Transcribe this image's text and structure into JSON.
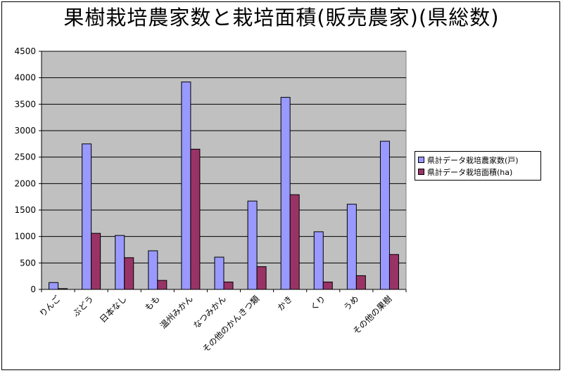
{
  "chart_data": {
    "type": "bar",
    "title": "果樹栽培農家数と栽培面積(販売農家)(県総数)",
    "categories": [
      "りんご",
      "ぶどう",
      "日本なし",
      "もも",
      "温州みかん",
      "なつみかん",
      "その他のかんきつ類",
      "かき",
      "くり",
      "うめ",
      "その他の果樹"
    ],
    "series": [
      {
        "name": "県計データ栽培農家数(戸)",
        "color": "#9999ff",
        "values": [
          130,
          2750,
          1020,
          730,
          3920,
          610,
          1670,
          3630,
          1090,
          1610,
          2800
        ]
      },
      {
        "name": "県計データ栽培面積(ha)",
        "color": "#993366",
        "values": [
          15,
          1060,
          600,
          170,
          2650,
          140,
          430,
          1790,
          140,
          260,
          660
        ]
      }
    ],
    "ylim": [
      0,
      4500
    ],
    "yticks": [
      0,
      500,
      1000,
      1500,
      2000,
      2500,
      3000,
      3500,
      4000,
      4500
    ],
    "grid": true,
    "legend_position": "right",
    "plot_background": "#c0c0c0"
  }
}
